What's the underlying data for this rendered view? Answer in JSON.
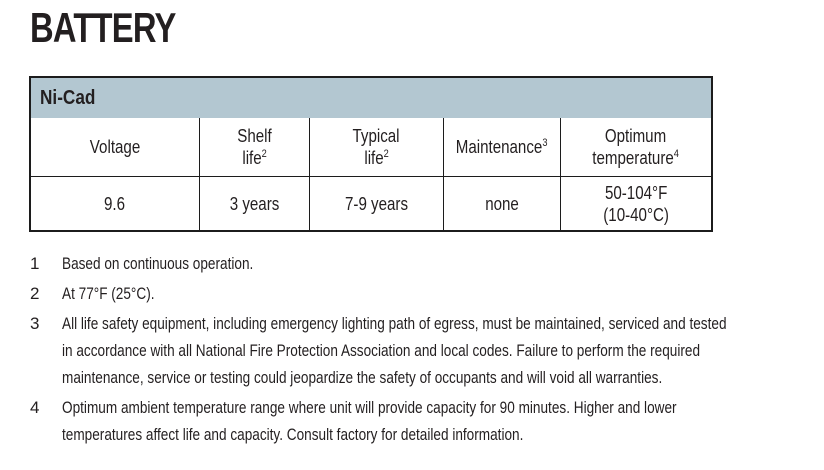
{
  "page": {
    "title": "BATTERY"
  },
  "table": {
    "section_header": "Ni-Cad",
    "columns": [
      {
        "line1": "Voltage",
        "line2": "",
        "sup": ""
      },
      {
        "line1": "Shelf",
        "line2": "life",
        "sup": "2"
      },
      {
        "line1": "Typical",
        "line2": "life",
        "sup": "2"
      },
      {
        "line1": "Maintenance",
        "line2": "",
        "sup": "3"
      },
      {
        "line1": "Optimum",
        "line2": "temperature",
        "sup": "4"
      }
    ],
    "row": {
      "voltage": "9.6",
      "shelf_life": "3 years",
      "typical_life": "7-9 years",
      "maintenance": "none",
      "optimum_temperature_line1": "50-104°F",
      "optimum_temperature_line2": "(10-40°C)"
    }
  },
  "footnotes": [
    {
      "num": "1",
      "lines": [
        "Based on continuous operation."
      ]
    },
    {
      "num": "2",
      "lines": [
        "At 77°F (25°C)."
      ]
    },
    {
      "num": "3",
      "lines": [
        "All life safety equipment, including emergency lighting path of egress, must be maintained, serviced and tested",
        "in accordance with all National Fire Protection Association and local codes. Failure to perform the required",
        "maintenance, service or testing could jeopardize the safety of occupants and will void all warranties."
      ]
    },
    {
      "num": "4",
      "lines": [
        "Optimum ambient temperature range where unit will provide capacity for 90 minutes. Higher and lower",
        "temperatures affect life and capacity. Consult factory for detailed information."
      ]
    }
  ],
  "colors": {
    "band": "#b3c7d1",
    "border": "#1c1c1c",
    "text": "#231f20",
    "page": "#ffffff"
  }
}
